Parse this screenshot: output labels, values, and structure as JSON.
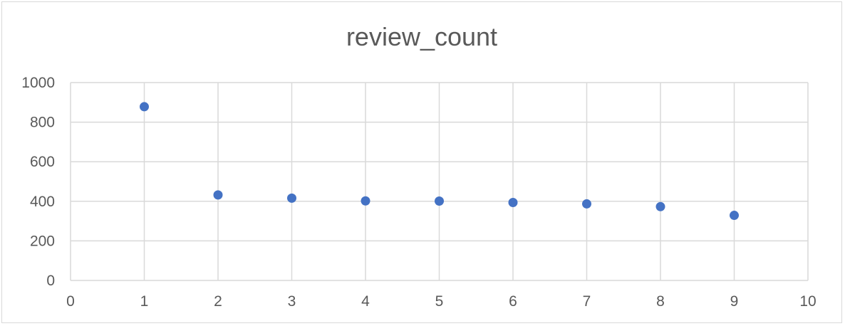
{
  "chart_data": {
    "type": "scatter",
    "title": "review_count",
    "xlabel": "",
    "ylabel": "",
    "xlim": [
      0,
      10
    ],
    "ylim": [
      0,
      1000
    ],
    "x_ticks": [
      "0",
      "1",
      "2",
      "3",
      "4",
      "5",
      "6",
      "7",
      "8",
      "9",
      "10"
    ],
    "y_ticks": [
      "0",
      "200",
      "400",
      "600",
      "800",
      "1000"
    ],
    "grid": true,
    "legend": "none",
    "marker_color": "#4472c4",
    "series": [
      {
        "x": [
          1,
          2,
          3,
          4,
          5,
          6,
          7,
          8,
          9
        ],
        "y": [
          878,
          432,
          416,
          402,
          401,
          394,
          387,
          373,
          329
        ]
      }
    ]
  }
}
